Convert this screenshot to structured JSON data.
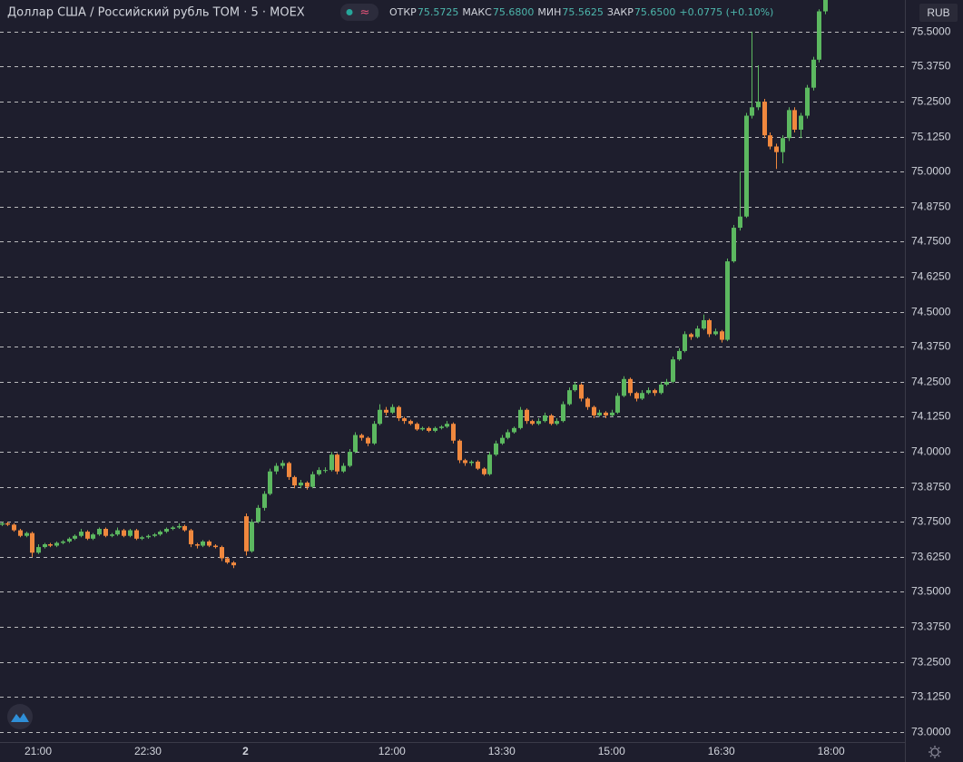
{
  "chart_data": {
    "type": "candlestick",
    "title": "Доллар США / Российский рубль ТОМ · 5 · MOEX",
    "ohlc_legend": {
      "labels": [
        "ОТКР",
        "МАКС",
        "МИН",
        "ЗАКР"
      ],
      "values": [
        "75.5725",
        "75.6800",
        "75.5625",
        "75.6500"
      ],
      "change": "+0.0775 (+0.10%)"
    },
    "currency": "RUB",
    "up_color": "#5cb860",
    "down_color": "#f0883e",
    "grid": true,
    "xlim": [
      -0.25,
      148.1
    ],
    "ylim": [
      72.964,
      75.613
    ],
    "xticks": [
      {
        "value": 6,
        "label": "21:00"
      },
      {
        "value": 24,
        "label": "22:30"
      },
      {
        "value": 40,
        "label": "2"
      },
      {
        "value": 64,
        "label": "12:00"
      },
      {
        "value": 82,
        "label": "13:30"
      },
      {
        "value": 100,
        "label": "15:00"
      },
      {
        "value": 118,
        "label": "16:30"
      },
      {
        "value": 136,
        "label": "18:00"
      }
    ],
    "yticks": [
      {
        "value": 73.0,
        "label": "73.0000"
      },
      {
        "value": 73.125,
        "label": "73.1250"
      },
      {
        "value": 73.25,
        "label": "73.2500"
      },
      {
        "value": 73.375,
        "label": "73.3750"
      },
      {
        "value": 73.5,
        "label": "73.5000"
      },
      {
        "value": 73.625,
        "label": "73.6250"
      },
      {
        "value": 73.75,
        "label": "73.7500"
      },
      {
        "value": 73.875,
        "label": "73.8750"
      },
      {
        "value": 74.0,
        "label": "74.0000"
      },
      {
        "value": 74.125,
        "label": "74.1250"
      },
      {
        "value": 74.25,
        "label": "74.2500"
      },
      {
        "value": 74.375,
        "label": "74.3750"
      },
      {
        "value": 74.5,
        "label": "74.5000"
      },
      {
        "value": 74.625,
        "label": "74.6250"
      },
      {
        "value": 74.75,
        "label": "74.7500"
      },
      {
        "value": 74.875,
        "label": "74.8750"
      },
      {
        "value": 75.0,
        "label": "75.0000"
      },
      {
        "value": 75.125,
        "label": "75.1250"
      },
      {
        "value": 75.25,
        "label": "75.2500"
      },
      {
        "value": 75.375,
        "label": "75.3750"
      },
      {
        "value": 75.5,
        "label": "75.5000"
      }
    ],
    "candles": [
      [
        73.74,
        73.75,
        73.735,
        73.745
      ],
      [
        73.745,
        73.75,
        73.735,
        73.74
      ],
      [
        73.74,
        73.745,
        73.715,
        73.72
      ],
      [
        73.72,
        73.725,
        73.695,
        73.7
      ],
      [
        73.7,
        73.715,
        73.695,
        73.71
      ],
      [
        73.71,
        73.715,
        73.625,
        73.64
      ],
      [
        73.64,
        73.67,
        73.635,
        73.66
      ],
      [
        73.66,
        73.675,
        73.655,
        73.67
      ],
      [
        73.67,
        73.675,
        73.66,
        73.665
      ],
      [
        73.665,
        73.68,
        73.66,
        73.675
      ],
      [
        73.675,
        73.685,
        73.67,
        73.68
      ],
      [
        73.68,
        73.695,
        73.675,
        73.69
      ],
      [
        73.69,
        73.705,
        73.685,
        73.7
      ],
      [
        73.7,
        73.725,
        73.695,
        73.715
      ],
      [
        73.715,
        73.72,
        73.685,
        73.69
      ],
      [
        73.69,
        73.71,
        73.685,
        73.705
      ],
      [
        73.705,
        73.73,
        73.7,
        73.725
      ],
      [
        73.725,
        73.73,
        73.695,
        73.7
      ],
      [
        73.7,
        73.71,
        73.695,
        73.705
      ],
      [
        73.705,
        73.73,
        73.7,
        73.72
      ],
      [
        73.72,
        73.725,
        73.695,
        73.7
      ],
      [
        73.7,
        73.725,
        73.695,
        73.72
      ],
      [
        73.72,
        73.725,
        73.685,
        73.69
      ],
      [
        73.69,
        73.7,
        73.685,
        73.695
      ],
      [
        73.695,
        73.705,
        73.69,
        73.7
      ],
      [
        73.7,
        73.71,
        73.695,
        73.705
      ],
      [
        73.705,
        73.72,
        73.7,
        73.715
      ],
      [
        73.715,
        73.73,
        73.71,
        73.725
      ],
      [
        73.725,
        73.735,
        73.72,
        73.73
      ],
      [
        73.73,
        73.745,
        73.725,
        73.735
      ],
      [
        73.735,
        73.74,
        73.715,
        73.72
      ],
      [
        73.72,
        73.725,
        73.66,
        73.67
      ],
      [
        73.67,
        73.675,
        73.655,
        73.665
      ],
      [
        73.665,
        73.685,
        73.66,
        73.68
      ],
      [
        73.68,
        73.685,
        73.66,
        73.665
      ],
      [
        73.665,
        73.67,
        73.655,
        73.66
      ],
      [
        73.66,
        73.665,
        73.61,
        73.62
      ],
      [
        73.62,
        73.625,
        73.6,
        73.605
      ],
      [
        73.605,
        73.61,
        73.585,
        73.595
      ],
      null,
      [
        73.77,
        73.78,
        73.63,
        73.645
      ],
      [
        73.645,
        73.76,
        73.64,
        73.75
      ],
      [
        73.75,
        73.81,
        73.745,
        73.8
      ],
      [
        73.8,
        73.86,
        73.79,
        73.85
      ],
      [
        73.85,
        73.94,
        73.845,
        73.93
      ],
      [
        73.93,
        73.96,
        73.92,
        73.95
      ],
      [
        73.95,
        73.97,
        73.94,
        73.96
      ],
      [
        73.96,
        73.965,
        73.9,
        73.91
      ],
      [
        73.91,
        73.915,
        73.87,
        73.88
      ],
      [
        73.88,
        73.9,
        73.87,
        73.89
      ],
      [
        73.89,
        73.895,
        73.865,
        73.875
      ],
      [
        73.875,
        73.93,
        73.87,
        73.92
      ],
      [
        73.92,
        73.945,
        73.915,
        73.935
      ],
      [
        73.935,
        73.945,
        73.925,
        73.935
      ],
      [
        73.935,
        74.0,
        73.93,
        73.99
      ],
      [
        73.99,
        73.995,
        73.92,
        73.93
      ],
      [
        73.93,
        73.96,
        73.925,
        73.95
      ],
      [
        73.95,
        74.01,
        73.945,
        74.0
      ],
      [
        74.0,
        74.07,
        73.995,
        74.06
      ],
      [
        74.06,
        74.065,
        74.04,
        74.05
      ],
      [
        74.05,
        74.055,
        74.02,
        74.03
      ],
      [
        74.03,
        74.11,
        74.025,
        74.1
      ],
      [
        74.1,
        74.17,
        74.095,
        74.15
      ],
      [
        74.15,
        74.16,
        74.13,
        74.14
      ],
      [
        74.14,
        74.17,
        74.135,
        74.16
      ],
      [
        74.16,
        74.165,
        74.11,
        74.12
      ],
      [
        74.12,
        74.125,
        74.1,
        74.11
      ],
      [
        74.11,
        74.115,
        74.095,
        74.1
      ],
      [
        74.1,
        74.105,
        74.075,
        74.08
      ],
      [
        74.08,
        74.09,
        74.075,
        74.085
      ],
      [
        74.085,
        74.09,
        74.07,
        74.075
      ],
      [
        74.075,
        74.09,
        74.07,
        74.085
      ],
      [
        74.085,
        74.095,
        74.08,
        74.09
      ],
      [
        74.09,
        74.11,
        74.085,
        74.1
      ],
      [
        74.1,
        74.105,
        74.03,
        74.04
      ],
      [
        74.04,
        74.045,
        73.96,
        73.97
      ],
      [
        73.97,
        73.975,
        73.95,
        73.96
      ],
      [
        73.96,
        73.97,
        73.95,
        73.965
      ],
      [
        73.965,
        73.97,
        73.935,
        73.94
      ],
      [
        73.94,
        73.945,
        73.915,
        73.92
      ],
      [
        73.92,
        74.0,
        73.915,
        73.99
      ],
      [
        73.99,
        74.04,
        73.985,
        74.03
      ],
      [
        74.03,
        74.06,
        74.025,
        74.05
      ],
      [
        74.05,
        74.08,
        74.045,
        74.07
      ],
      [
        74.07,
        74.09,
        74.065,
        74.085
      ],
      [
        74.085,
        74.16,
        74.08,
        74.15
      ],
      [
        74.15,
        74.155,
        74.1,
        74.11
      ],
      [
        74.11,
        74.115,
        74.095,
        74.1
      ],
      [
        74.1,
        74.12,
        74.095,
        74.11
      ],
      [
        74.11,
        74.14,
        74.105,
        74.13
      ],
      [
        74.13,
        74.135,
        74.095,
        74.1
      ],
      [
        74.1,
        74.12,
        74.095,
        74.11
      ],
      [
        74.11,
        74.18,
        74.105,
        74.17
      ],
      [
        74.17,
        74.23,
        74.165,
        74.22
      ],
      [
        74.22,
        74.25,
        74.215,
        74.24
      ],
      [
        74.24,
        74.245,
        74.18,
        74.19
      ],
      [
        74.19,
        74.195,
        74.15,
        74.16
      ],
      [
        74.16,
        74.165,
        74.12,
        74.13
      ],
      [
        74.13,
        74.15,
        74.125,
        74.14
      ],
      [
        74.14,
        74.145,
        74.12,
        74.13
      ],
      [
        74.13,
        74.15,
        74.125,
        74.14
      ],
      [
        74.14,
        74.21,
        74.135,
        74.2
      ],
      [
        74.2,
        74.27,
        74.195,
        74.26
      ],
      [
        74.26,
        74.265,
        74.2,
        74.21
      ],
      [
        74.21,
        74.215,
        74.18,
        74.19
      ],
      [
        74.19,
        74.22,
        74.185,
        74.21
      ],
      [
        74.21,
        74.23,
        74.205,
        74.22
      ],
      [
        74.22,
        74.225,
        74.2,
        74.21
      ],
      [
        74.21,
        74.25,
        74.205,
        74.24
      ],
      [
        74.24,
        74.26,
        74.235,
        74.25
      ],
      [
        74.25,
        74.34,
        74.245,
        74.33
      ],
      [
        74.33,
        74.37,
        74.325,
        74.36
      ],
      [
        74.36,
        74.43,
        74.355,
        74.42
      ],
      [
        74.42,
        74.425,
        74.4,
        74.41
      ],
      [
        74.41,
        74.45,
        74.405,
        74.44
      ],
      [
        74.44,
        74.49,
        74.435,
        74.47
      ],
      [
        74.47,
        74.475,
        74.41,
        74.42
      ],
      [
        74.42,
        74.44,
        74.415,
        74.43
      ],
      [
        74.43,
        74.435,
        74.39,
        74.4
      ],
      [
        74.4,
        74.69,
        74.395,
        74.68
      ],
      [
        74.68,
        74.81,
        74.675,
        74.8
      ],
      [
        74.8,
        75.0,
        74.79,
        74.84
      ],
      [
        74.84,
        75.21,
        74.835,
        75.2
      ],
      [
        75.2,
        75.5,
        75.19,
        75.23
      ],
      [
        75.23,
        75.38,
        75.22,
        75.25
      ],
      [
        75.25,
        75.26,
        75.12,
        75.13
      ],
      [
        75.13,
        75.14,
        75.08,
        75.09
      ],
      [
        75.09,
        75.1,
        75.01,
        75.07
      ],
      [
        75.07,
        75.13,
        75.03,
        75.12
      ],
      [
        75.12,
        75.23,
        75.11,
        75.22
      ],
      [
        75.22,
        75.23,
        75.14,
        75.15
      ],
      [
        75.15,
        75.21,
        75.12,
        75.2
      ],
      [
        75.2,
        75.31,
        75.19,
        75.3
      ],
      [
        75.3,
        75.41,
        75.29,
        75.4
      ],
      [
        75.4,
        75.58,
        75.39,
        75.5725
      ],
      [
        75.5725,
        75.68,
        75.5625,
        75.65
      ]
    ]
  }
}
